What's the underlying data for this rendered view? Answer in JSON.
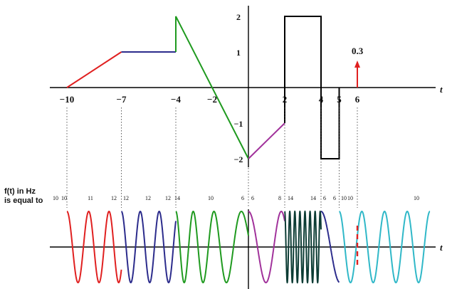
{
  "axis_symbol_t": "t",
  "x_ticks": [
    "−10",
    "−7",
    "−4",
    "−2",
    "2",
    "4",
    "5",
    "6"
  ],
  "y_ticks": [
    "2",
    "1",
    "−1",
    "−2"
  ],
  "impulse_label": "0.3",
  "freq_caption_line1": "f(t) in Hz",
  "freq_caption_line2": "is equal to",
  "freq_labels": [
    "10",
    "10",
    "11",
    "12",
    "12",
    "12",
    "12",
    "14",
    "10",
    "6",
    "6",
    "8",
    "14",
    "14",
    "6",
    "6",
    "10",
    "10",
    "10"
  ],
  "colors": {
    "red": "#e02020",
    "navy": "#2c2c8c",
    "green": "#1f9a1f",
    "purple": "#a0309a",
    "teal": "#0c3c34",
    "cyan": "#30b8c8",
    "black": "#000000"
  },
  "chart_data": {
    "type": "line",
    "xlabel": "t",
    "ylabel": "",
    "xlim": [
      -10.5,
      10.5
    ],
    "ylim": [
      -2.2,
      2.2
    ],
    "segments": [
      {
        "color": "red",
        "x": [
          -10,
          -7
        ],
        "y": [
          0,
          1
        ]
      },
      {
        "color": "navy",
        "x": [
          -7,
          -4
        ],
        "y": [
          1,
          1
        ]
      },
      {
        "color": "green",
        "x": [
          -4,
          -4,
          0
        ],
        "y": [
          1,
          2,
          -2
        ]
      },
      {
        "color": "purple",
        "x": [
          0,
          2
        ],
        "y": [
          -2,
          -1
        ]
      },
      {
        "color": "black",
        "x": [
          2,
          2,
          4,
          4,
          5,
          5
        ],
        "y": [
          -1,
          2,
          2,
          -2,
          -2,
          0
        ]
      }
    ],
    "impulse": {
      "x": 6,
      "value": 0.3
    }
  }
}
